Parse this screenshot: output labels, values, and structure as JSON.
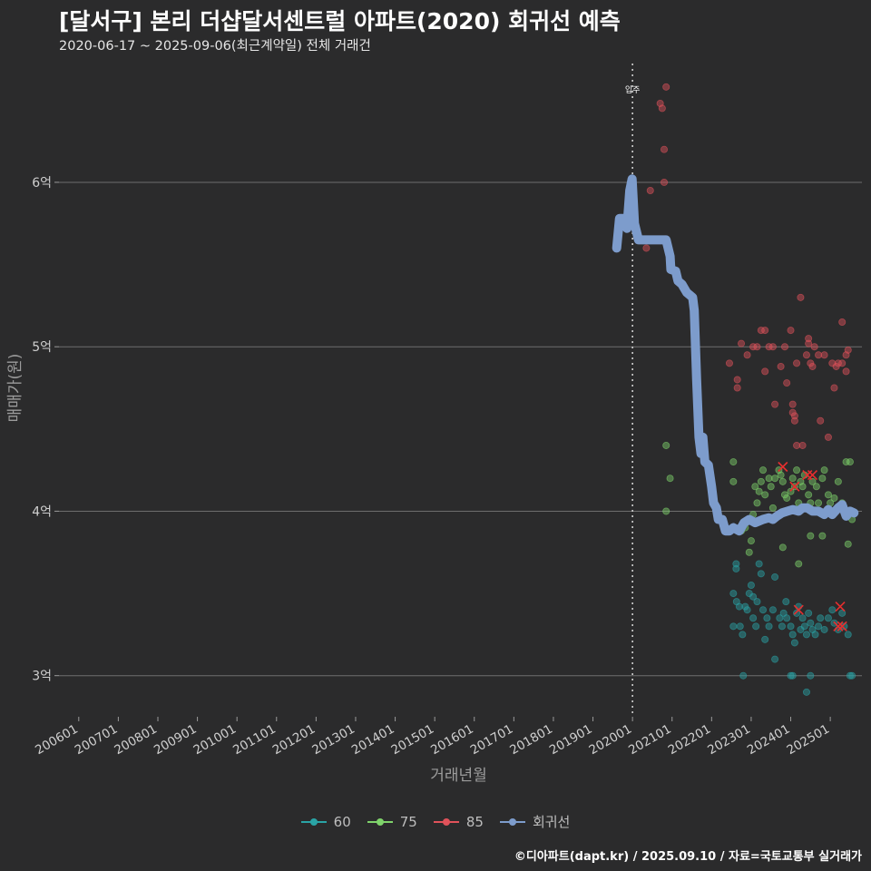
{
  "title": "[달서구] 본리 더샵달서센트럴 아파트(2020) 회귀선 예측",
  "subtitle": "2020-06-17 ~ 2025-09-06(최근계약일) 전체 거래건",
  "caption": "©디아파트(dapt.kr) / 2025.09.10 / 자료=국토교통부 실거래가",
  "colors": {
    "background": "#2b2b2c",
    "grid": "#6e6e6e",
    "series_60": "#2aa4a6",
    "series_75": "#7fd36b",
    "series_85": "#e0525a",
    "regression": "#7d9ccc",
    "cancel_mark": "#e82e2e"
  },
  "chart_data": {
    "type": "scatter",
    "xlabel": "거래년월",
    "ylabel": "매매가(원)",
    "x_ticks": [
      "200601",
      "200701",
      "200801",
      "200901",
      "201001",
      "201101",
      "201201",
      "201301",
      "201401",
      "201501",
      "201601",
      "201701",
      "201801",
      "201901",
      "202001",
      "202101",
      "202201",
      "202301",
      "202401",
      "202501"
    ],
    "y_ticks": [
      {
        "value": 3,
        "label": "3억"
      },
      {
        "value": 4,
        "label": "4억"
      },
      {
        "value": 5,
        "label": "5억"
      },
      {
        "value": 6,
        "label": "6억"
      }
    ],
    "ylim": [
      2.75,
      6.75
    ],
    "xlim": [
      2005.5,
      2025.8
    ],
    "y_unit": "억",
    "grid": "horizontal",
    "legend_position": "bottom",
    "reference_line": {
      "x": 2020.0,
      "label": "입주"
    },
    "legend": [
      {
        "key": "60",
        "label": "60",
        "color_key": "series_60"
      },
      {
        "key": "75",
        "label": "75",
        "color_key": "series_75"
      },
      {
        "key": "85",
        "label": "85",
        "color_key": "series_85"
      },
      {
        "key": "reg",
        "label": "회귀선",
        "color_key": "regression"
      }
    ],
    "regression": [
      [
        2019.6,
        5.6
      ],
      [
        2019.67,
        5.78
      ],
      [
        2019.78,
        5.78
      ],
      [
        2019.86,
        5.72
      ],
      [
        2019.93,
        5.95
      ],
      [
        2019.99,
        6.02
      ],
      [
        2020.05,
        5.75
      ],
      [
        2020.12,
        5.68
      ],
      [
        2020.15,
        5.65
      ],
      [
        2020.85,
        5.65
      ],
      [
        2020.95,
        5.55
      ],
      [
        2020.97,
        5.47
      ],
      [
        2021.09,
        5.46
      ],
      [
        2021.15,
        5.4
      ],
      [
        2021.25,
        5.38
      ],
      [
        2021.37,
        5.33
      ],
      [
        2021.52,
        5.3
      ],
      [
        2021.56,
        5.22
      ],
      [
        2021.62,
        4.8
      ],
      [
        2021.68,
        4.45
      ],
      [
        2021.73,
        4.35
      ],
      [
        2021.78,
        4.45
      ],
      [
        2021.83,
        4.3
      ],
      [
        2021.92,
        4.28
      ],
      [
        2022.0,
        4.15
      ],
      [
        2022.05,
        4.05
      ],
      [
        2022.12,
        4.02
      ],
      [
        2022.17,
        3.95
      ],
      [
        2022.27,
        3.95
      ],
      [
        2022.35,
        3.88
      ],
      [
        2022.45,
        3.88
      ],
      [
        2022.55,
        3.9
      ],
      [
        2022.7,
        3.88
      ],
      [
        2022.82,
        3.93
      ],
      [
        2022.95,
        3.95
      ],
      [
        2023.1,
        3.93
      ],
      [
        2023.3,
        3.95
      ],
      [
        2023.45,
        3.96
      ],
      [
        2023.55,
        3.95
      ],
      [
        2023.65,
        3.97
      ],
      [
        2023.78,
        3.99
      ],
      [
        2023.92,
        4.0
      ],
      [
        2024.05,
        4.01
      ],
      [
        2024.2,
        4.0
      ],
      [
        2024.3,
        4.02
      ],
      [
        2024.42,
        4.02
      ],
      [
        2024.55,
        4.0
      ],
      [
        2024.7,
        4.0
      ],
      [
        2024.85,
        3.98
      ],
      [
        2024.95,
        4.01
      ],
      [
        2025.05,
        3.98
      ],
      [
        2025.2,
        4.02
      ],
      [
        2025.3,
        4.04
      ],
      [
        2025.4,
        3.97
      ],
      [
        2025.5,
        4.0
      ],
      [
        2025.6,
        3.99
      ]
    ],
    "series": [
      {
        "name": "60",
        "color_key": "series_60",
        "points": [
          [
            2022.55,
            3.5
          ],
          [
            2022.62,
            3.68
          ],
          [
            2022.62,
            3.65
          ],
          [
            2022.63,
            3.45
          ],
          [
            2022.7,
            3.42
          ],
          [
            2022.72,
            3.3
          ],
          [
            2022.55,
            3.3
          ],
          [
            2022.78,
            3.25
          ],
          [
            2022.85,
            3.42
          ],
          [
            2022.9,
            3.4
          ],
          [
            2022.95,
            3.5
          ],
          [
            2023.0,
            3.55
          ],
          [
            2023.05,
            3.48
          ],
          [
            2023.05,
            3.35
          ],
          [
            2023.12,
            3.3
          ],
          [
            2023.15,
            3.45
          ],
          [
            2023.2,
            3.68
          ],
          [
            2023.25,
            3.62
          ],
          [
            2023.3,
            3.4
          ],
          [
            2023.35,
            3.22
          ],
          [
            2023.4,
            3.35
          ],
          [
            2023.45,
            3.3
          ],
          [
            2023.55,
            3.4
          ],
          [
            2023.6,
            3.6
          ],
          [
            2023.72,
            3.35
          ],
          [
            2023.78,
            3.3
          ],
          [
            2023.82,
            3.38
          ],
          [
            2023.88,
            3.45
          ],
          [
            2023.9,
            3.35
          ],
          [
            2024.0,
            3.3
          ],
          [
            2024.05,
            3.25
          ],
          [
            2024.1,
            3.2
          ],
          [
            2024.15,
            3.38
          ],
          [
            2024.2,
            3.42
          ],
          [
            2024.25,
            3.28
          ],
          [
            2024.3,
            3.35
          ],
          [
            2024.35,
            3.3
          ],
          [
            2024.4,
            3.25
          ],
          [
            2024.45,
            3.38
          ],
          [
            2024.5,
            3.32
          ],
          [
            2024.55,
            3.28
          ],
          [
            2024.62,
            3.25
          ],
          [
            2024.7,
            3.3
          ],
          [
            2024.75,
            3.35
          ],
          [
            2024.85,
            3.28
          ],
          [
            2024.95,
            3.35
          ],
          [
            2025.05,
            3.4
          ],
          [
            2025.1,
            3.32
          ],
          [
            2025.2,
            3.28
          ],
          [
            2025.3,
            3.38
          ],
          [
            2025.35,
            3.3
          ],
          [
            2025.45,
            3.25
          ],
          [
            2025.5,
            3.0
          ],
          [
            2025.55,
            3.0
          ],
          [
            2022.8,
            3.0
          ],
          [
            2023.6,
            3.1
          ],
          [
            2024.0,
            3.0
          ],
          [
            2024.05,
            3.0
          ],
          [
            2024.4,
            2.9
          ],
          [
            2024.5,
            3.0
          ]
        ]
      },
      {
        "name": "75",
        "color_key": "series_75",
        "points": [
          [
            2020.85,
            4.4
          ],
          [
            2020.95,
            4.2
          ],
          [
            2020.85,
            4.0
          ],
          [
            2022.55,
            4.3
          ],
          [
            2022.55,
            4.18
          ],
          [
            2022.75,
            3.88
          ],
          [
            2022.8,
            3.92
          ],
          [
            2022.85,
            3.9
          ],
          [
            2022.95,
            3.75
          ],
          [
            2023.0,
            3.82
          ],
          [
            2023.05,
            3.98
          ],
          [
            2023.1,
            4.15
          ],
          [
            2023.15,
            4.05
          ],
          [
            2023.2,
            4.12
          ],
          [
            2023.25,
            4.18
          ],
          [
            2023.3,
            4.25
          ],
          [
            2023.35,
            4.1
          ],
          [
            2023.45,
            4.2
          ],
          [
            2023.5,
            4.15
          ],
          [
            2023.55,
            4.02
          ],
          [
            2023.6,
            4.2
          ],
          [
            2023.7,
            4.25
          ],
          [
            2023.75,
            4.22
          ],
          [
            2023.8,
            4.18
          ],
          [
            2023.85,
            4.1
          ],
          [
            2023.9,
            4.08
          ],
          [
            2024.0,
            4.12
          ],
          [
            2024.05,
            4.2
          ],
          [
            2024.1,
            4.15
          ],
          [
            2024.15,
            4.25
          ],
          [
            2024.2,
            4.05
          ],
          [
            2024.25,
            4.18
          ],
          [
            2024.3,
            4.15
          ],
          [
            2024.35,
            4.22
          ],
          [
            2024.45,
            4.1
          ],
          [
            2024.5,
            4.05
          ],
          [
            2024.55,
            4.18
          ],
          [
            2024.65,
            4.15
          ],
          [
            2024.7,
            4.05
          ],
          [
            2024.8,
            4.2
          ],
          [
            2024.85,
            4.25
          ],
          [
            2024.95,
            4.1
          ],
          [
            2025.0,
            4.05
          ],
          [
            2025.1,
            4.08
          ],
          [
            2025.2,
            4.18
          ],
          [
            2025.3,
            4.05
          ],
          [
            2025.4,
            4.3
          ],
          [
            2025.45,
            3.8
          ],
          [
            2025.5,
            4.3
          ],
          [
            2025.55,
            3.95
          ],
          [
            2023.8,
            3.78
          ],
          [
            2024.2,
            3.68
          ],
          [
            2024.5,
            3.85
          ],
          [
            2024.8,
            3.85
          ]
        ]
      },
      {
        "name": "85",
        "color_key": "series_85",
        "points": [
          [
            2020.05,
            5.75
          ],
          [
            2020.35,
            5.6
          ],
          [
            2020.45,
            5.95
          ],
          [
            2020.7,
            6.48
          ],
          [
            2020.75,
            6.45
          ],
          [
            2020.8,
            6.2
          ],
          [
            2020.8,
            6.0
          ],
          [
            2020.85,
            6.58
          ],
          [
            2022.45,
            4.9
          ],
          [
            2022.65,
            4.8
          ],
          [
            2022.65,
            4.75
          ],
          [
            2022.75,
            5.02
          ],
          [
            2022.9,
            4.95
          ],
          [
            2023.05,
            5.0
          ],
          [
            2023.15,
            5.0
          ],
          [
            2023.25,
            5.1
          ],
          [
            2023.35,
            5.1
          ],
          [
            2023.45,
            5.0
          ],
          [
            2023.55,
            5.0
          ],
          [
            2023.35,
            4.85
          ],
          [
            2023.6,
            4.65
          ],
          [
            2023.75,
            4.88
          ],
          [
            2023.85,
            5.0
          ],
          [
            2024.0,
            5.1
          ],
          [
            2024.05,
            4.6
          ],
          [
            2024.1,
            4.55
          ],
          [
            2024.15,
            4.9
          ],
          [
            2024.25,
            5.3
          ],
          [
            2024.3,
            4.4
          ],
          [
            2024.4,
            4.95
          ],
          [
            2024.45,
            5.05
          ],
          [
            2024.5,
            4.9
          ],
          [
            2024.55,
            4.88
          ],
          [
            2024.6,
            5.0
          ],
          [
            2024.7,
            4.95
          ],
          [
            2024.75,
            4.55
          ],
          [
            2024.85,
            4.95
          ],
          [
            2024.95,
            4.45
          ],
          [
            2025.05,
            4.9
          ],
          [
            2025.1,
            4.75
          ],
          [
            2025.15,
            4.88
          ],
          [
            2025.2,
            4.9
          ],
          [
            2025.3,
            5.15
          ],
          [
            2025.4,
            4.95
          ],
          [
            2025.45,
            4.98
          ],
          [
            2023.9,
            4.78
          ],
          [
            2024.05,
            4.65
          ],
          [
            2024.1,
            4.58
          ],
          [
            2024.15,
            4.4
          ],
          [
            2024.45,
            5.02
          ],
          [
            2025.3,
            4.9
          ],
          [
            2025.4,
            4.85
          ]
        ]
      }
    ],
    "canceled_marks": [
      [
        2023.8,
        4.27
      ],
      [
        2024.1,
        4.15
      ],
      [
        2024.42,
        4.22
      ],
      [
        2024.55,
        4.22
      ],
      [
        2024.2,
        3.4
      ],
      [
        2025.25,
        3.42
      ],
      [
        2025.3,
        3.3
      ],
      [
        2025.2,
        3.3
      ]
    ]
  }
}
